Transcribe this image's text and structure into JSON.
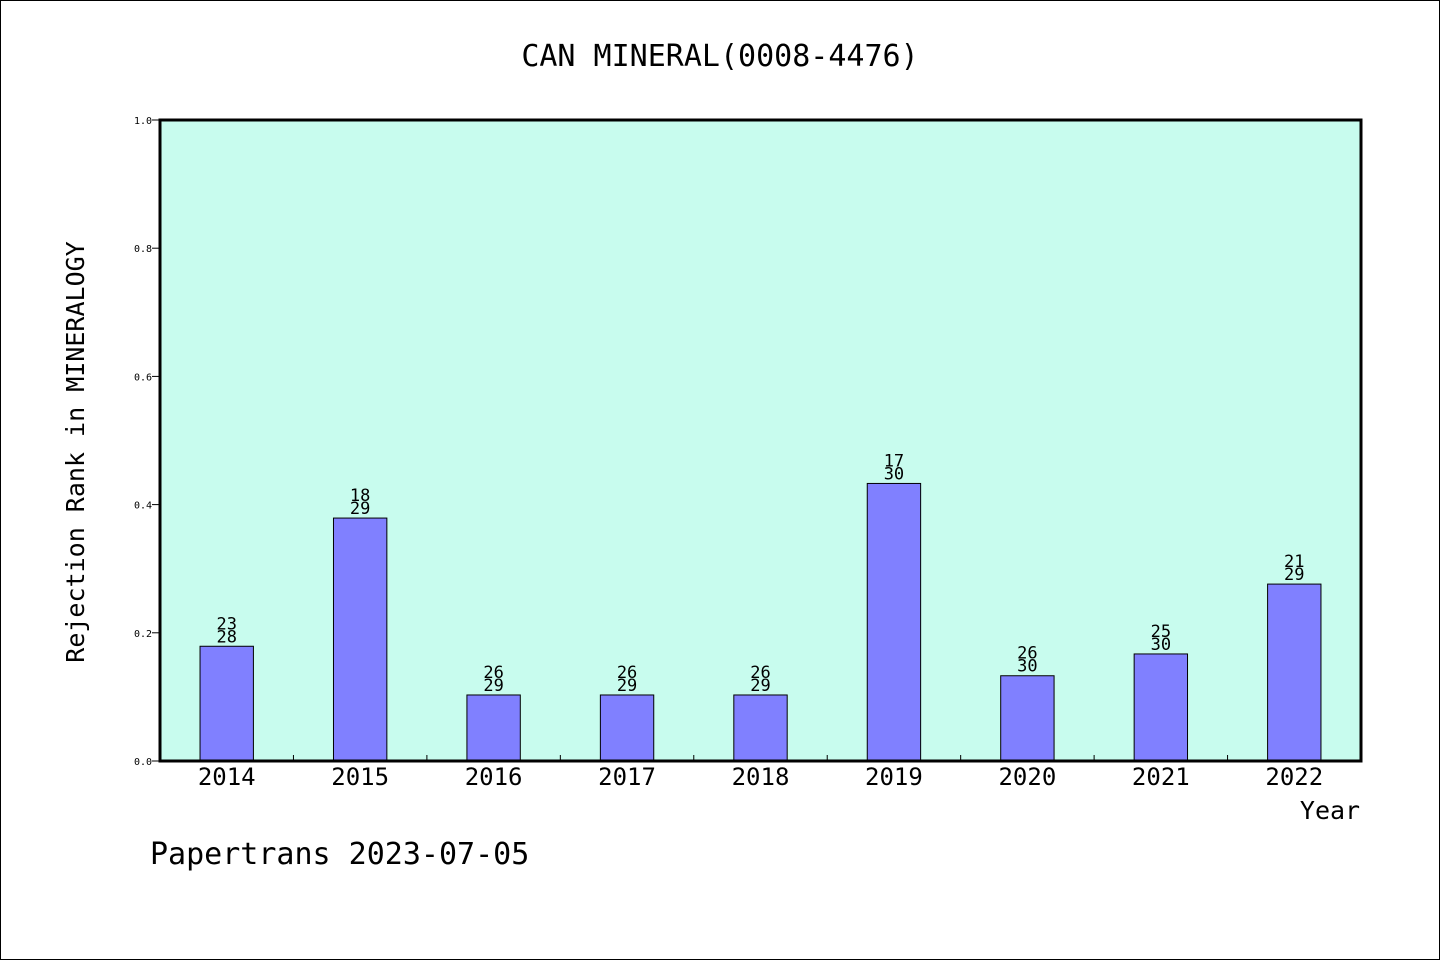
{
  "chart_data": {
    "type": "bar",
    "title": "CAN MINERAL(0008-4476)",
    "xlabel": "Year",
    "ylabel": "Rejection Rank in MINERALOGY",
    "ylim": [
      0,
      1.0
    ],
    "yticks": [
      "0.0",
      "0.2",
      "0.4",
      "0.6",
      "0.8",
      "1.0"
    ],
    "categories": [
      "2014",
      "2015",
      "2016",
      "2017",
      "2018",
      "2019",
      "2020",
      "2021",
      "2022"
    ],
    "values": [
      0.179,
      0.379,
      0.103,
      0.103,
      0.103,
      0.433,
      0.133,
      0.167,
      0.276
    ],
    "bar_labels": [
      [
        "23",
        "28"
      ],
      [
        "18",
        "29"
      ],
      [
        "26",
        "29"
      ],
      [
        "26",
        "29"
      ],
      [
        "26",
        "29"
      ],
      [
        "17",
        "30"
      ],
      [
        "26",
        "30"
      ],
      [
        "25",
        "30"
      ],
      [
        "21",
        "29"
      ]
    ],
    "grid": false,
    "colors": {
      "plot_background": "#c8fcee",
      "bar_fill": "#8080ff",
      "bar_edge": "#000000"
    }
  },
  "footer": {
    "text": "Papertrans 2023-07-05"
  }
}
